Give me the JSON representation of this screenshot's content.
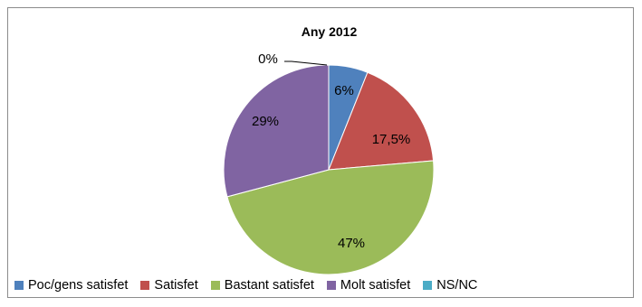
{
  "chart_data": {
    "type": "pie",
    "title": "Any 2012",
    "categories": [
      "Poc/gens satisfet",
      "Satisfet",
      "Bastant satisfet",
      "Molt satisfet",
      "NS/NC"
    ],
    "values": [
      6,
      17.5,
      47,
      29,
      0
    ],
    "data_labels": [
      "6%",
      "17,5%",
      "47%",
      "29%",
      "0%"
    ],
    "colors": [
      "#4f81bd",
      "#c0504d",
      "#9bbb59",
      "#8064a2",
      "#4bacc6"
    ],
    "legend_position": "bottom"
  }
}
